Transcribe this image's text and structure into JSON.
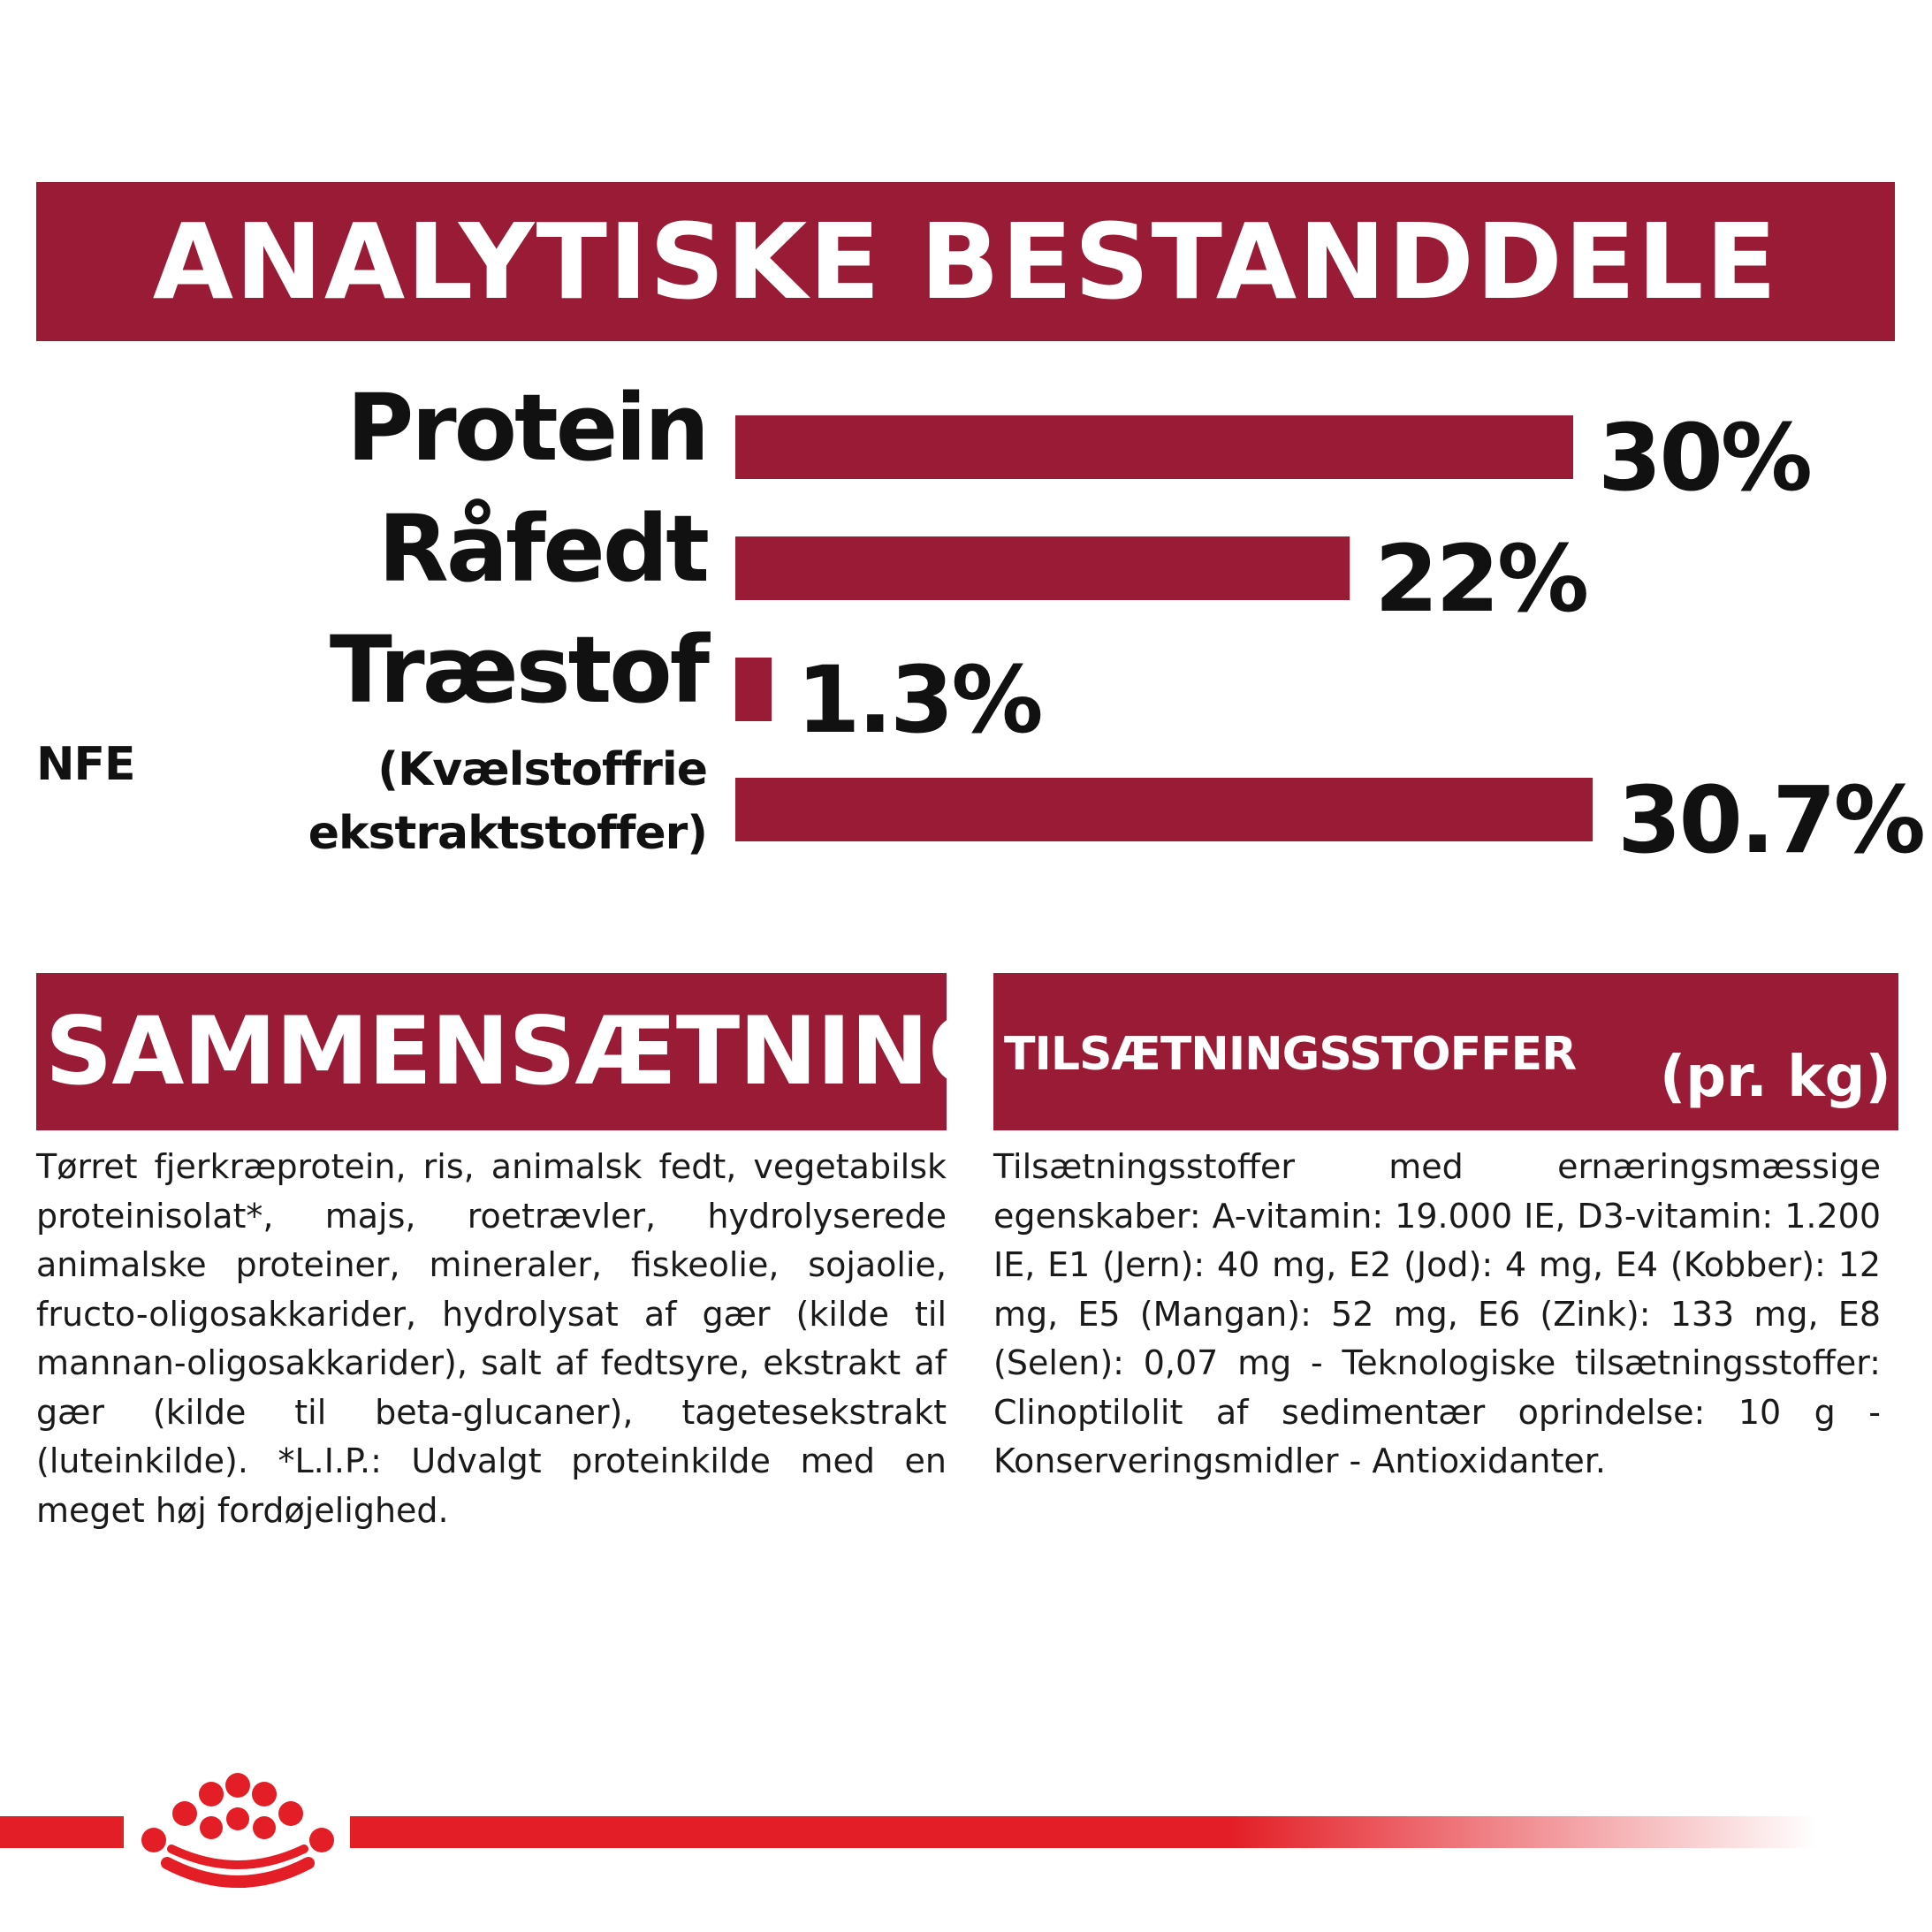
{
  "analytics_title": "ANALYTISKE BESTANDDELE",
  "chart_data": {
    "type": "bar",
    "orientation": "horizontal",
    "unit": "%",
    "xlim": [
      0,
      30.7
    ],
    "grid": false,
    "categories": [
      "Protein",
      "Råfedt",
      "Træstof",
      "NFE (Kvælstoffrie ekstraktstoffer)"
    ],
    "values": [
      30,
      22,
      1.3,
      30.7
    ],
    "value_labels": [
      "30%",
      "22%",
      "1.3%",
      "30.7%"
    ],
    "nfe_abbreviation": "NFE",
    "nfe_label_lines": [
      "(Kvælstoffrie",
      "ekstraktstoffer)"
    ],
    "bar_color": "#9a1b35"
  },
  "composition": {
    "title": "SAMMENSÆTNING",
    "text": "Tørret fjerkræprotein, ris, animalsk fedt, vegetabilsk proteinisolat*, majs, roetrævler, hydrolyserede animalske proteiner, mineraler, fiskeolie, sojaolie, fructo-oligosakkarider, hydrolysat af gær (kilde til mannan-oligosakkarider), salt af fedtsyre, ekstrakt af gær (kilde til beta-glucaner), tagetesekstrakt (luteinkilde). *L.I.P.: Udvalgt proteinkilde med en meget høj fordøjelighed."
  },
  "additives": {
    "title": "TILSÆTNINGSSTOFFER",
    "unit": "(pr. kg)",
    "text": "Tilsætningsstoffer med ernæringsmæssige egenskaber: A-vitamin: 19.000 IE, D3-vitamin: 1.200 IE, E1 (Jern): 40 mg, E2 (Jod): 4 mg, E4 (Kobber): 12 mg, E5 (Mangan): 52 mg, E6 (Zink): 133 mg, E8 (Selen): 0,07 mg - Teknologiske tilsætningsstoffer: Clinoptilolit af sedimentær oprindelse: 10 g - Konserveringsmidler - Antioxidanter."
  },
  "colors": {
    "banner": "#9a1b35",
    "footer_line": "#e31e26"
  },
  "logo": {
    "icon": "crown-icon"
  }
}
